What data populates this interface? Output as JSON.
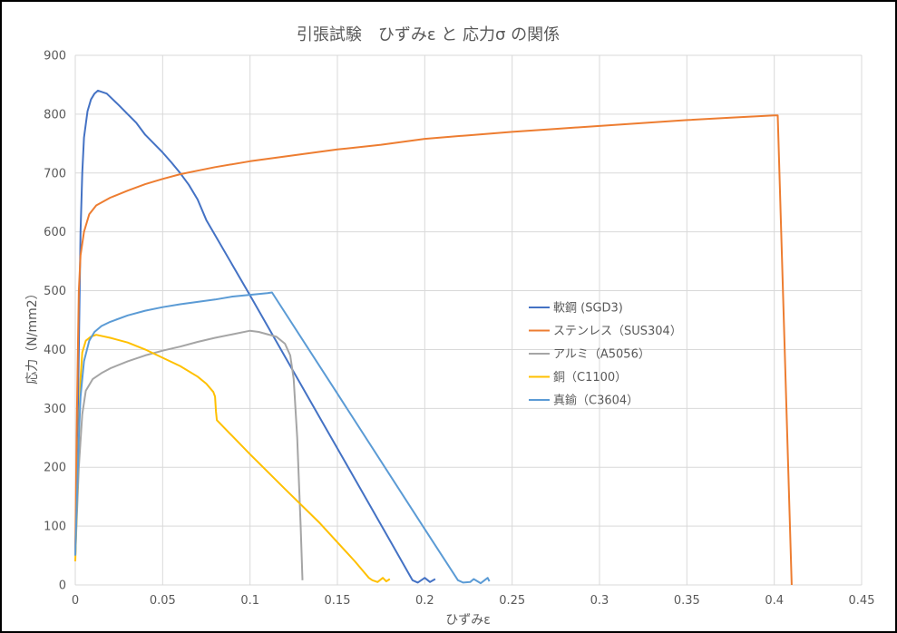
{
  "chart_data": {
    "type": "line",
    "title": "引張試験　ひずみε と 応力σ の関係",
    "xlabel": "ひずみε",
    "ylabel": "応力（N/mm2）",
    "xlim": [
      0,
      0.45
    ],
    "ylim": [
      0,
      900
    ],
    "xticks": [
      "0",
      "0.05",
      "0.1",
      "0.15",
      "0.2",
      "0.25",
      "0.3",
      "0.35",
      "0.4",
      "0.45"
    ],
    "yticks": [
      "0",
      "100",
      "200",
      "300",
      "400",
      "500",
      "600",
      "700",
      "800",
      "900"
    ],
    "grid": true,
    "legend": "right-center",
    "colors": {
      "grid": "#D9D9D9",
      "text": "#595959"
    },
    "series": [
      {
        "name": "軟鋼 (SGD3)",
        "color": "#4472C4",
        "points": [
          [
            0,
            50
          ],
          [
            0.001,
            200
          ],
          [
            0.002,
            400
          ],
          [
            0.003,
            600
          ],
          [
            0.004,
            700
          ],
          [
            0.005,
            760
          ],
          [
            0.007,
            805
          ],
          [
            0.009,
            825
          ],
          [
            0.011,
            835
          ],
          [
            0.013,
            840
          ],
          [
            0.018,
            835
          ],
          [
            0.025,
            815
          ],
          [
            0.03,
            800
          ],
          [
            0.035,
            785
          ],
          [
            0.04,
            765
          ],
          [
            0.045,
            750
          ],
          [
            0.05,
            735
          ],
          [
            0.055,
            718
          ],
          [
            0.06,
            700
          ],
          [
            0.065,
            680
          ],
          [
            0.07,
            655
          ],
          [
            0.075,
            620
          ],
          [
            0.1,
            492
          ],
          [
            0.12,
            388
          ],
          [
            0.14,
            284
          ],
          [
            0.16,
            180
          ],
          [
            0.18,
            76
          ],
          [
            0.193,
            8
          ],
          [
            0.196,
            4
          ],
          [
            0.2,
            12
          ],
          [
            0.203,
            5
          ],
          [
            0.206,
            10
          ]
        ]
      },
      {
        "name": "ステンレス（SUS304）",
        "color": "#ED7D31",
        "points": [
          [
            0,
            60
          ],
          [
            0.001,
            300
          ],
          [
            0.002,
            500
          ],
          [
            0.003,
            560
          ],
          [
            0.005,
            600
          ],
          [
            0.008,
            630
          ],
          [
            0.012,
            645
          ],
          [
            0.02,
            658
          ],
          [
            0.03,
            670
          ],
          [
            0.04,
            681
          ],
          [
            0.05,
            690
          ],
          [
            0.06,
            698
          ],
          [
            0.07,
            704
          ],
          [
            0.08,
            710
          ],
          [
            0.1,
            720
          ],
          [
            0.125,
            730
          ],
          [
            0.15,
            740
          ],
          [
            0.175,
            748
          ],
          [
            0.2,
            758
          ],
          [
            0.225,
            764
          ],
          [
            0.25,
            770
          ],
          [
            0.275,
            775
          ],
          [
            0.3,
            780
          ],
          [
            0.325,
            785
          ],
          [
            0.35,
            790
          ],
          [
            0.375,
            794
          ],
          [
            0.4,
            798
          ],
          [
            0.402,
            798
          ],
          [
            0.41,
            0
          ]
        ]
      },
      {
        "name": "アルミ（A5056）",
        "color": "#A5A5A5",
        "points": [
          [
            0,
            50
          ],
          [
            0.002,
            200
          ],
          [
            0.004,
            290
          ],
          [
            0.006,
            330
          ],
          [
            0.01,
            350
          ],
          [
            0.015,
            360
          ],
          [
            0.02,
            368
          ],
          [
            0.03,
            380
          ],
          [
            0.04,
            390
          ],
          [
            0.05,
            398
          ],
          [
            0.06,
            405
          ],
          [
            0.07,
            413
          ],
          [
            0.08,
            420
          ],
          [
            0.09,
            426
          ],
          [
            0.1,
            432
          ],
          [
            0.105,
            430
          ],
          [
            0.11,
            426
          ],
          [
            0.115,
            422
          ],
          [
            0.12,
            410
          ],
          [
            0.123,
            390
          ],
          [
            0.125,
            350
          ],
          [
            0.127,
            250
          ],
          [
            0.129,
            100
          ],
          [
            0.13,
            8
          ]
        ]
      },
      {
        "name": "銅（C1100）",
        "color": "#FFC000",
        "points": [
          [
            0,
            40
          ],
          [
            0.002,
            250
          ],
          [
            0.003,
            350
          ],
          [
            0.004,
            395
          ],
          [
            0.006,
            415
          ],
          [
            0.009,
            422
          ],
          [
            0.012,
            425
          ],
          [
            0.02,
            420
          ],
          [
            0.03,
            412
          ],
          [
            0.04,
            400
          ],
          [
            0.05,
            386
          ],
          [
            0.06,
            372
          ],
          [
            0.07,
            354
          ],
          [
            0.075,
            342
          ],
          [
            0.079,
            328
          ],
          [
            0.08,
            320
          ],
          [
            0.0805,
            295
          ],
          [
            0.081,
            280
          ],
          [
            0.1,
            222
          ],
          [
            0.12,
            163
          ],
          [
            0.14,
            105
          ],
          [
            0.16,
            40
          ],
          [
            0.168,
            12
          ],
          [
            0.17,
            8
          ],
          [
            0.173,
            5
          ],
          [
            0.176,
            12
          ],
          [
            0.178,
            6
          ],
          [
            0.18,
            10
          ]
        ]
      },
      {
        "name": "真鍮（C3604）",
        "color": "#5B9BD5",
        "points": [
          [
            0,
            50
          ],
          [
            0.002,
            250
          ],
          [
            0.003,
            320
          ],
          [
            0.005,
            380
          ],
          [
            0.008,
            415
          ],
          [
            0.011,
            430
          ],
          [
            0.015,
            440
          ],
          [
            0.02,
            447
          ],
          [
            0.03,
            458
          ],
          [
            0.04,
            466
          ],
          [
            0.05,
            472
          ],
          [
            0.06,
            477
          ],
          [
            0.07,
            481
          ],
          [
            0.08,
            485
          ],
          [
            0.09,
            490
          ],
          [
            0.1,
            493
          ],
          [
            0.11,
            496
          ],
          [
            0.1126,
            497
          ],
          [
            0.15,
            325
          ],
          [
            0.2,
            95
          ],
          [
            0.219,
            8
          ],
          [
            0.222,
            4
          ],
          [
            0.226,
            5
          ],
          [
            0.228,
            10
          ],
          [
            0.232,
            3
          ],
          [
            0.236,
            12
          ],
          [
            0.237,
            6
          ]
        ]
      }
    ]
  }
}
